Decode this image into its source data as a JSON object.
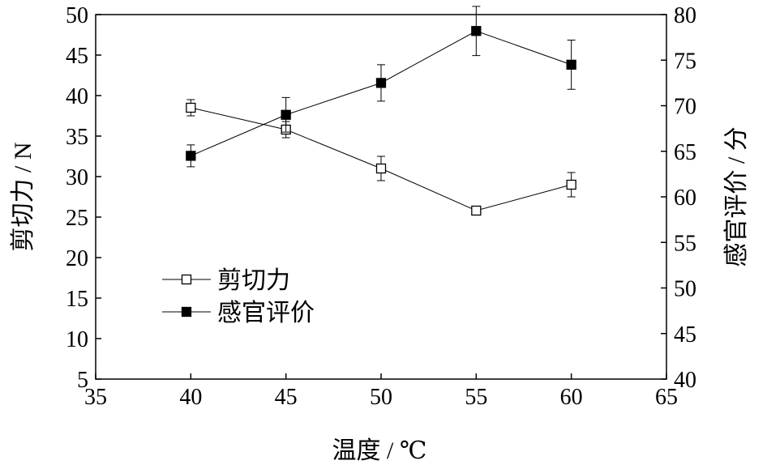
{
  "chart_data": {
    "type": "line",
    "xlabel": "温度 / ℃",
    "ylabel_left": "剪切力 / N",
    "ylabel_right": "感官评价 / 分",
    "xlim": [
      35,
      65
    ],
    "ylim_left": [
      5,
      50
    ],
    "ylim_right": [
      40,
      80
    ],
    "x_ticks": [
      35,
      40,
      45,
      50,
      55,
      60,
      65
    ],
    "y_left_ticks": [
      5,
      10,
      15,
      20,
      25,
      30,
      35,
      40,
      45,
      50
    ],
    "y_right_ticks": [
      40,
      45,
      50,
      55,
      60,
      65,
      70,
      75,
      80
    ],
    "grid": false,
    "legend_position": "lower-left",
    "series": [
      {
        "name": "剪切力",
        "axis": "left",
        "marker": "open-square",
        "x": [
          40,
          45,
          50,
          55,
          60
        ],
        "values": [
          38.5,
          35.8,
          31.0,
          25.8,
          29.0
        ],
        "errors": [
          1.0,
          1.0,
          1.5,
          0.3,
          1.5
        ]
      },
      {
        "name": "感官评价",
        "axis": "right",
        "marker": "filled-square",
        "x": [
          40,
          45,
          50,
          55,
          60
        ],
        "values": [
          64.5,
          69.0,
          72.5,
          78.2,
          74.5
        ],
        "errors": [
          1.2,
          1.9,
          2.0,
          2.7,
          2.7
        ]
      }
    ]
  }
}
